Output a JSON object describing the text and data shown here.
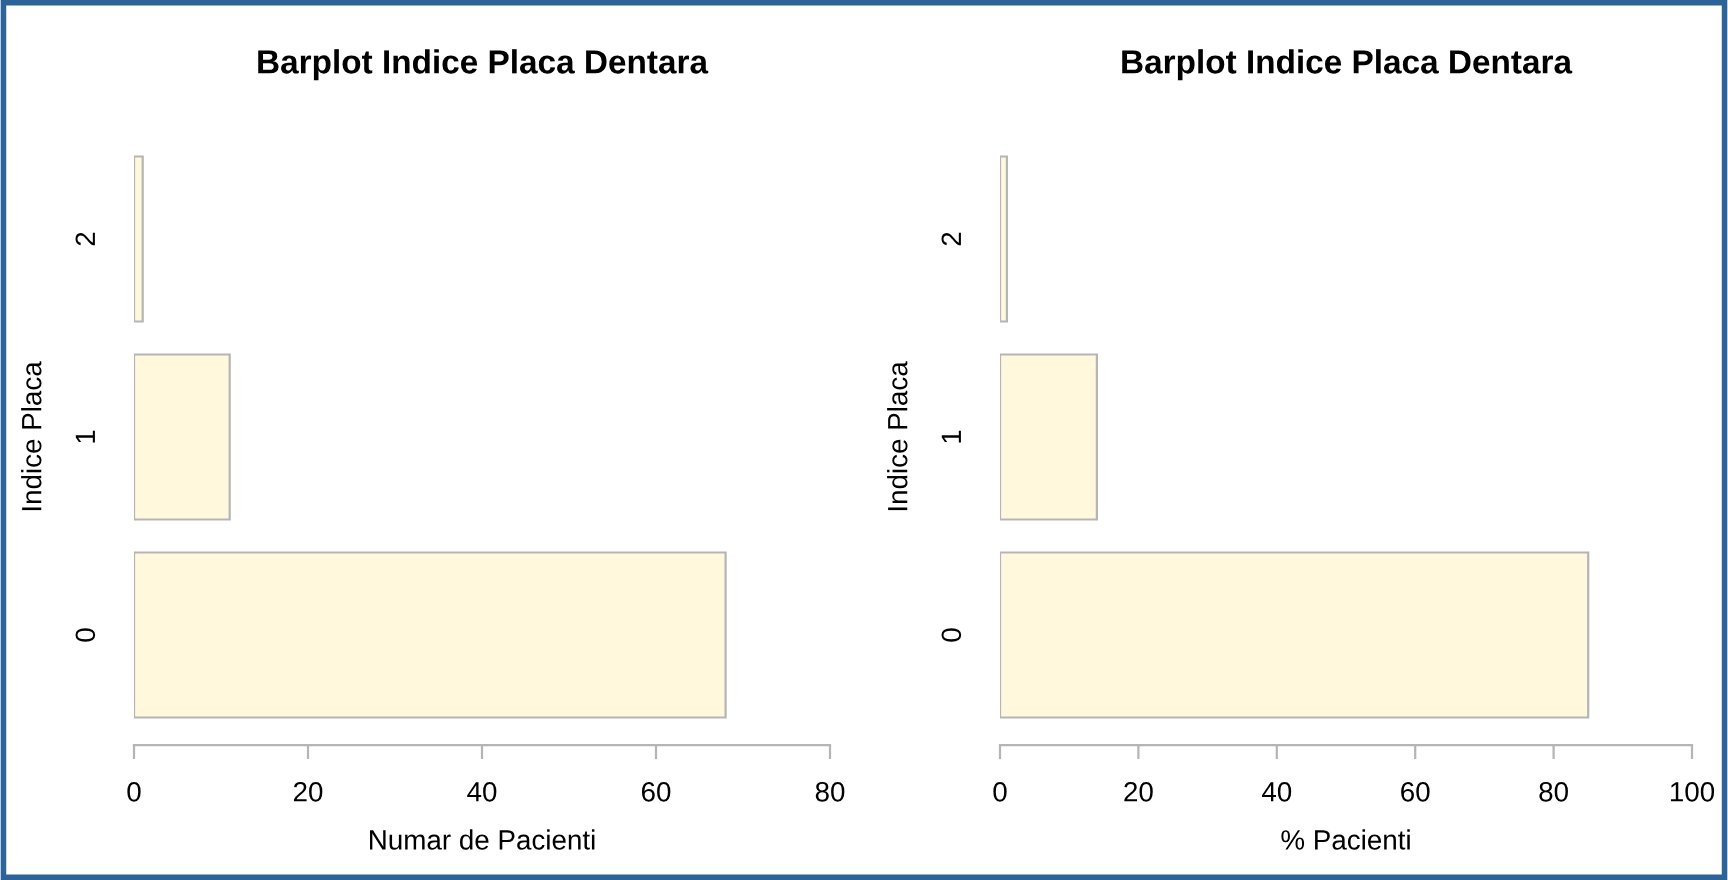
{
  "chart_data": [
    {
      "type": "bar",
      "orientation": "horizontal",
      "title": "Barplot Indice Placa Dentara",
      "xlabel": "Numar de Pacienti",
      "ylabel": "Indice Placa",
      "categories": [
        "2",
        "1",
        "0"
      ],
      "values": [
        1,
        11,
        68
      ],
      "color": "#fff8dc",
      "xlim": [
        0,
        80
      ],
      "xticks": [
        0,
        20,
        40,
        60,
        80
      ],
      "grid": false,
      "legend": false
    },
    {
      "type": "bar",
      "orientation": "horizontal",
      "title": "Barplot Indice Placa Dentara",
      "xlabel": "% Pacienti",
      "ylabel": "Indice Placa",
      "categories": [
        "2",
        "1",
        "0"
      ],
      "values": [
        1,
        14,
        85
      ],
      "color": "#fff8dc",
      "xlim": [
        0,
        100
      ],
      "xticks": [
        0,
        20,
        40,
        60,
        80,
        100
      ],
      "grid": false,
      "legend": false
    }
  ]
}
